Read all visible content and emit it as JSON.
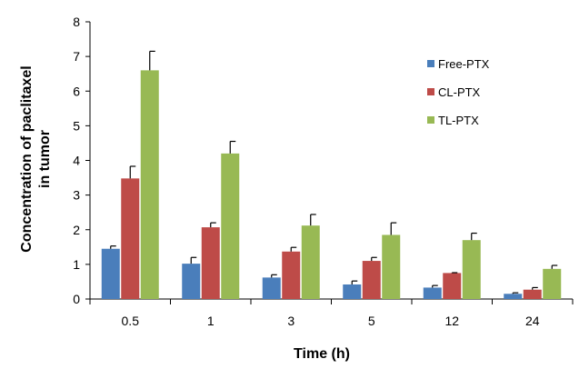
{
  "chart_data": {
    "type": "bar",
    "categories": [
      "0.5",
      "1",
      "3",
      "5",
      "12",
      "24"
    ],
    "series": [
      {
        "name": "Free-PTX",
        "color": "#4a7ebb",
        "values": [
          1.45,
          1.02,
          0.62,
          0.42,
          0.33,
          0.15
        ],
        "errors": [
          0.08,
          0.18,
          0.08,
          0.1,
          0.06,
          0.03
        ]
      },
      {
        "name": "CL-PTX",
        "color": "#be4b48",
        "values": [
          3.48,
          2.07,
          1.37,
          1.1,
          0.75,
          0.27
        ],
        "errors": [
          0.35,
          0.13,
          0.12,
          0.1,
          0.01,
          0.06
        ]
      },
      {
        "name": "TL-PTX",
        "color": "#98b954",
        "values": [
          6.6,
          4.2,
          2.12,
          1.85,
          1.7,
          0.87
        ],
        "errors": [
          0.55,
          0.35,
          0.32,
          0.35,
          0.2,
          0.1
        ]
      }
    ],
    "title": "",
    "xlabel": "Time (h)",
    "ylabel_line1": "Concentration of paclitaxel",
    "ylabel_line2": "in tumor",
    "ylim": [
      0,
      8
    ],
    "yticks": [
      "0",
      "1",
      "2",
      "3",
      "4",
      "5",
      "6",
      "7",
      "8"
    ],
    "grid": false,
    "legend_position": "top-right"
  }
}
